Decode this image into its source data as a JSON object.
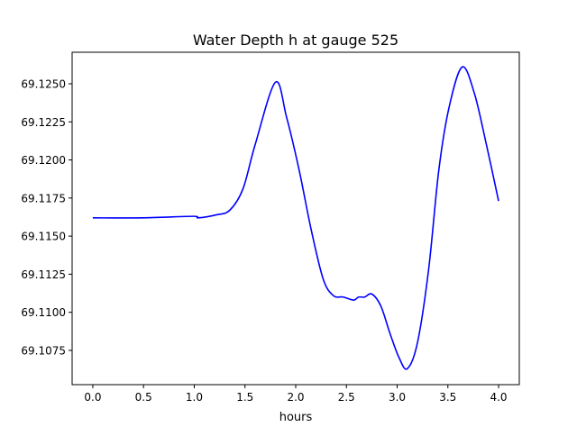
{
  "chart_data": {
    "type": "line",
    "title": "Water Depth h at gauge 525",
    "xlabel": "hours",
    "ylabel": "",
    "xlim": [
      -0.204,
      4.204
    ],
    "ylim": [
      69.10525,
      69.12707
    ],
    "xticks": [
      0.0,
      0.5,
      1.0,
      1.5,
      2.0,
      2.5,
      3.0,
      3.5,
      4.0
    ],
    "xtick_labels": [
      "0.0",
      "0.5",
      "1.0",
      "1.5",
      "2.0",
      "2.5",
      "3.0",
      "3.5",
      "4.0"
    ],
    "yticks": [
      69.1075,
      69.11,
      69.1125,
      69.115,
      69.1175,
      69.12,
      69.1225,
      69.125
    ],
    "ytick_labels": [
      "69.1075",
      "69.1100",
      "69.1125",
      "69.1150",
      "69.1175",
      "69.1200",
      "69.1225",
      "69.1250"
    ],
    "grid": false,
    "series": [
      {
        "name": "h",
        "color": "#0000ff",
        "x": [
          0.0,
          0.5,
          0.987,
          1.04,
          1.22,
          1.35,
          1.48,
          1.6,
          1.8,
          1.91,
          2.035,
          2.15,
          2.27,
          2.37,
          2.47,
          2.57,
          2.62,
          2.68,
          2.75,
          2.84,
          2.93,
          3.02,
          3.1,
          3.2,
          3.31,
          3.41,
          3.51,
          3.64,
          3.76,
          3.88,
          4.0
        ],
        "y": [
          69.1162,
          69.1162,
          69.1163,
          69.1162,
          69.1164,
          69.1167,
          69.1181,
          69.121,
          69.1251,
          69.1228,
          69.1193,
          69.1155,
          69.1122,
          69.1111,
          69.111,
          69.1108,
          69.111,
          69.111,
          69.1112,
          69.1104,
          69.1086,
          69.107,
          69.1063,
          69.108,
          69.1128,
          69.1193,
          69.1234,
          69.1261,
          69.1244,
          69.121,
          69.1173
        ]
      }
    ]
  }
}
